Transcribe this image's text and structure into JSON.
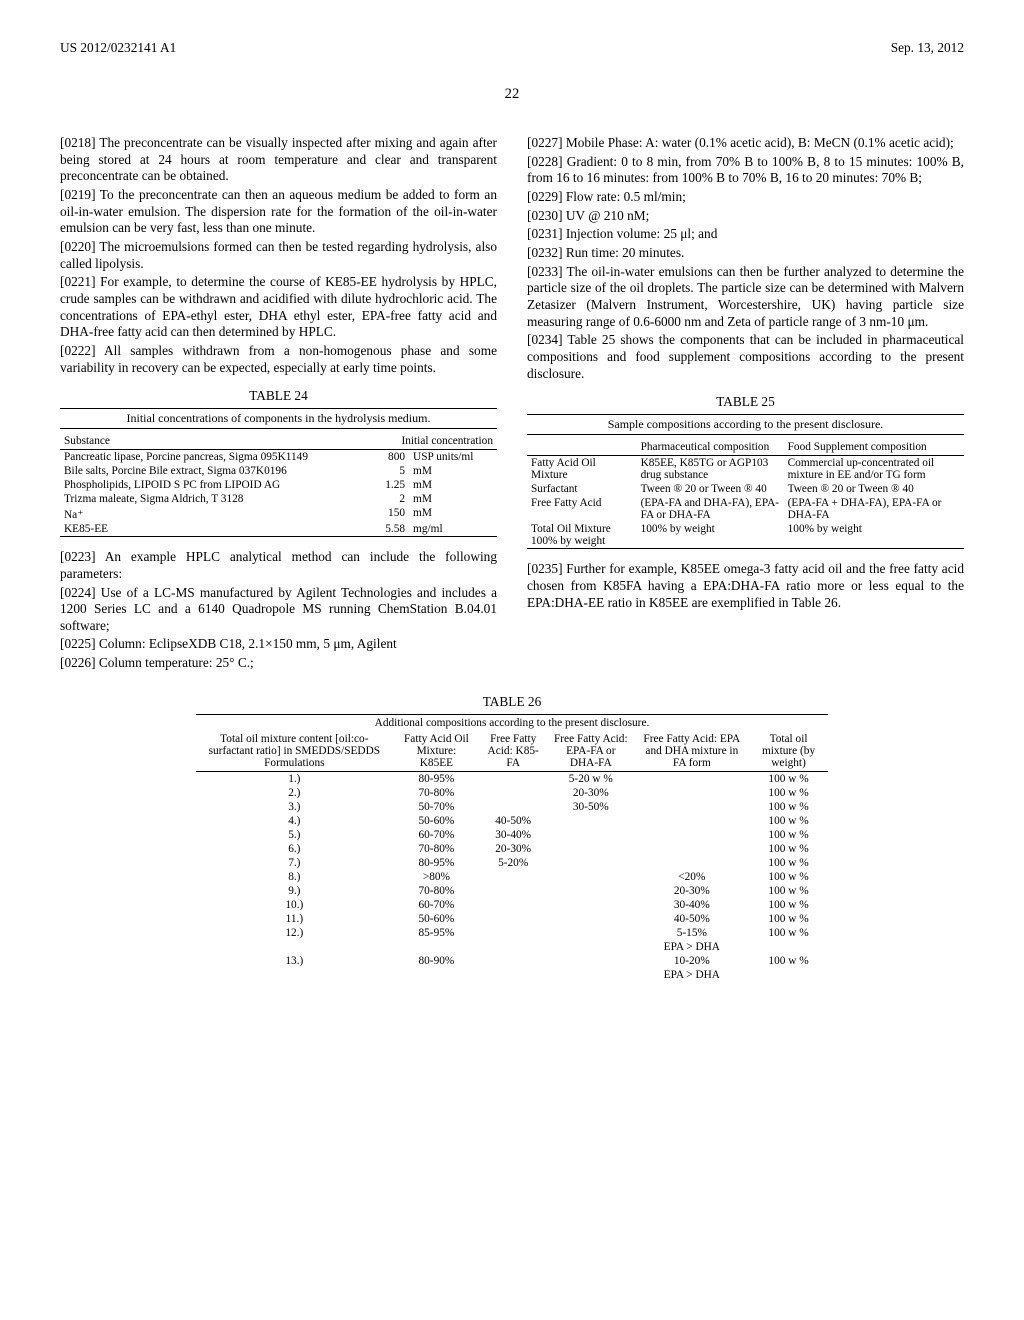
{
  "header": {
    "pub_number": "US 2012/0232141 A1",
    "pub_date": "Sep. 13, 2012",
    "page_number": "22"
  },
  "left_column": {
    "p0218": "[0218]   The preconcentrate can be visually inspected after mixing and again after being stored at 24 hours at room temperature and clear and transparent preconcentrate can be obtained.",
    "p0219": "[0219]   To the preconcentrate can then an aqueous medium be added to form an oil-in-water emulsion. The dispersion rate for the formation of the oil-in-water emulsion can be very fast, less than one minute.",
    "p0220": "[0220]   The microemulsions formed can then be tested regarding hydrolysis, also called lipolysis.",
    "p0221": "[0221]   For example, to determine the course of KE85-EE hydrolysis by HPLC, crude samples can be withdrawn and acidified with dilute hydrochloric acid. The concentrations of EPA-ethyl ester, DHA ethyl ester, EPA-free fatty acid and DHA-free fatty acid can then determined by HPLC.",
    "p0222": "[0222]   All samples withdrawn from a non-homogenous phase and some variability in recovery can be expected, especially at early time points.",
    "table24_title": "TABLE 24",
    "table24_caption": "Initial concentrations of components in the hydrolysis medium.",
    "table24": {
      "col1_header": "Substance",
      "col2_header": "Initial concentration",
      "rows": [
        {
          "substance": "Pancreatic lipase, Porcine pancreas, Sigma 095K1149",
          "val": "800",
          "unit": "USP units/ml"
        },
        {
          "substance": "Bile salts, Porcine Bile extract, Sigma 037K0196",
          "val": "5",
          "unit": "mM"
        },
        {
          "substance": "Phospholipids, LIPOID S PC from LIPOID AG",
          "val": "1.25",
          "unit": "mM"
        },
        {
          "substance": "Trizma maleate, Sigma Aldrich, T 3128",
          "val": "2",
          "unit": "mM"
        },
        {
          "substance": "Na⁺",
          "val": "150",
          "unit": "mM"
        },
        {
          "substance": "KE85-EE",
          "val": "5.58",
          "unit": "mg/ml"
        }
      ]
    },
    "p0223": "[0223]   An example HPLC analytical method can include the following parameters:",
    "p0224": "[0224]   Use of a LC-MS manufactured by Agilent Technologies and includes a 1200 Series LC and a 6140 Quadropole MS running ChemStation B.04.01 software;",
    "p0225": "[0225]   Column: EclipseXDB C18, 2.1×150 mm, 5 μm, Agilent",
    "p0226": "[0226]   Column temperature: 25° C.;"
  },
  "right_column": {
    "p0227": "[0227]   Mobile Phase: A: water (0.1% acetic acid), B: MeCN (0.1% acetic acid);",
    "p0228": "[0228]   Gradient: 0 to 8 min, from 70% B to 100% B, 8 to 15 minutes: 100% B, from 16 to 16 minutes: from 100% B to 70% B, 16 to 20 minutes: 70% B;",
    "p0229": "[0229]   Flow rate: 0.5 ml/min;",
    "p0230": "[0230]   UV @ 210 nM;",
    "p0231": "[0231]   Injection volume: 25 μl; and",
    "p0232": "[0232]   Run time: 20 minutes.",
    "p0233": "[0233]   The oil-in-water emulsions can then be further analyzed to determine the particle size of the oil droplets. The particle size can be determined with Malvern Zetasizer (Malvern Instrument, Worcestershire, UK) having particle size measuring range of 0.6-6000 nm and Zeta of particle range of 3 nm-10 μm.",
    "p0234": "[0234]   Table 25 shows the components that can be included in pharmaceutical compositions and food supplement compositions according to the present disclosure.",
    "table25_title": "TABLE 25",
    "table25_caption": "Sample compositions according to the present disclosure.",
    "table25": {
      "col1_header": "",
      "col2_header": "Pharmaceutical composition",
      "col3_header": "Food Supplement composition",
      "rows": [
        {
          "c1": "Fatty Acid Oil Mixture",
          "c2": "K85EE, K85TG or AGP103 drug substance",
          "c3": "Commercial up-concentrated oil mixture in EE and/or TG form"
        },
        {
          "c1": "Surfactant",
          "c2": "Tween ® 20 or Tween ® 40",
          "c3": "Tween ® 20 or Tween ® 40"
        },
        {
          "c1": "Free Fatty Acid",
          "c2": "(EPA-FA and DHA-FA), EPA-FA or DHA-FA",
          "c3": "(EPA-FA + DHA-FA), EPA-FA or DHA-FA"
        },
        {
          "c1": "Total Oil Mixture 100% by weight",
          "c2": "100% by weight",
          "c3": "100% by weight"
        }
      ]
    },
    "p0235": "[0235]   Further for example, K85EE omega-3 fatty acid oil and the free fatty acid chosen from K85FA having a EPA:DHA-FA ratio more or less equal to the EPA:DHA-EE ratio in K85EE are exemplified in Table 26."
  },
  "table26_title": "TABLE 26",
  "table26_caption": "Additional compositions according to the present disclosure.",
  "table26": {
    "headers": {
      "h1": "Total oil mixture content [oil:co-surfactant ratio] in SMEDDS/SEDDS Formulations",
      "h2": "Fatty Acid Oil Mixture: K85EE",
      "h3": "Free Fatty Acid: K85-FA",
      "h4": "Free Fatty Acid: EPA-FA or DHA-FA",
      "h5": "Free Fatty Acid: EPA and DHA mixture in FA form",
      "h6": "Total oil mixture (by weight)"
    },
    "rows": [
      {
        "n": "1.)",
        "c2": "80-95%",
        "c3": "",
        "c4": "5-20 w %",
        "c5": "",
        "c6": "100 w %"
      },
      {
        "n": "2.)",
        "c2": "70-80%",
        "c3": "",
        "c4": "20-30%",
        "c5": "",
        "c6": "100 w %"
      },
      {
        "n": "3.)",
        "c2": "50-70%",
        "c3": "",
        "c4": "30-50%",
        "c5": "",
        "c6": "100 w %"
      },
      {
        "n": "4.)",
        "c2": "50-60%",
        "c3": "40-50%",
        "c4": "",
        "c5": "",
        "c6": "100 w %"
      },
      {
        "n": "5.)",
        "c2": "60-70%",
        "c3": "30-40%",
        "c4": "",
        "c5": "",
        "c6": "100 w %"
      },
      {
        "n": "6.)",
        "c2": "70-80%",
        "c3": "20-30%",
        "c4": "",
        "c5": "",
        "c6": "100 w %"
      },
      {
        "n": "7.)",
        "c2": "80-95%",
        "c3": "5-20%",
        "c4": "",
        "c5": "",
        "c6": "100 w %"
      },
      {
        "n": "8.)",
        "c2": ">80%",
        "c3": "",
        "c4": "",
        "c5": "<20%",
        "c6": "100 w %"
      },
      {
        "n": "9.)",
        "c2": "70-80%",
        "c3": "",
        "c4": "",
        "c5": "20-30%",
        "c6": "100 w %"
      },
      {
        "n": "10.)",
        "c2": "60-70%",
        "c3": "",
        "c4": "",
        "c5": "30-40%",
        "c6": "100 w %"
      },
      {
        "n": "11.)",
        "c2": "50-60%",
        "c3": "",
        "c4": "",
        "c5": "40-50%",
        "c6": "100 w %"
      },
      {
        "n": "12.)",
        "c2": "85-95%",
        "c3": "",
        "c4": "",
        "c5": "5-15%",
        "c6": "100 w %"
      },
      {
        "n": "",
        "c2": "",
        "c3": "",
        "c4": "",
        "c5": "EPA > DHA",
        "c6": ""
      },
      {
        "n": "13.)",
        "c2": "80-90%",
        "c3": "",
        "c4": "",
        "c5": "10-20%",
        "c6": "100 w %"
      },
      {
        "n": "",
        "c2": "",
        "c3": "",
        "c4": "",
        "c5": "EPA > DHA",
        "c6": ""
      }
    ]
  }
}
